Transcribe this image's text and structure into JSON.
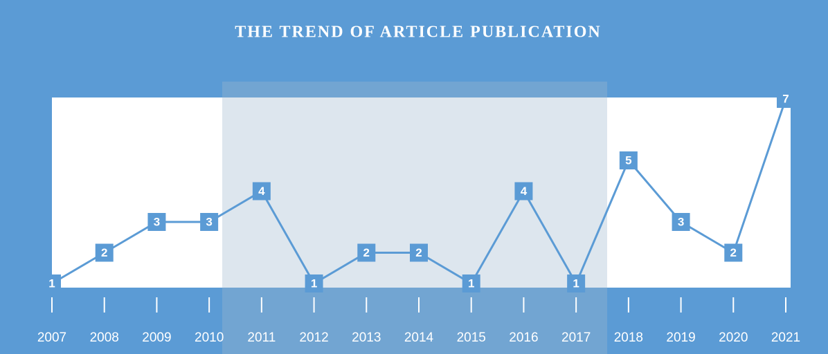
{
  "chart_data": {
    "type": "line",
    "title": "THE TREND OF ARTICLE PUBLICATION",
    "categories": [
      "2007",
      "2008",
      "2009",
      "2010",
      "2011",
      "2012",
      "2013",
      "2014",
      "2015",
      "2016",
      "2017",
      "2018",
      "2019",
      "2020",
      "2021"
    ],
    "values": [
      1,
      2,
      3,
      3,
      4,
      1,
      2,
      2,
      1,
      4,
      1,
      5,
      3,
      2,
      7
    ],
    "color": "#5b9bd5"
  }
}
